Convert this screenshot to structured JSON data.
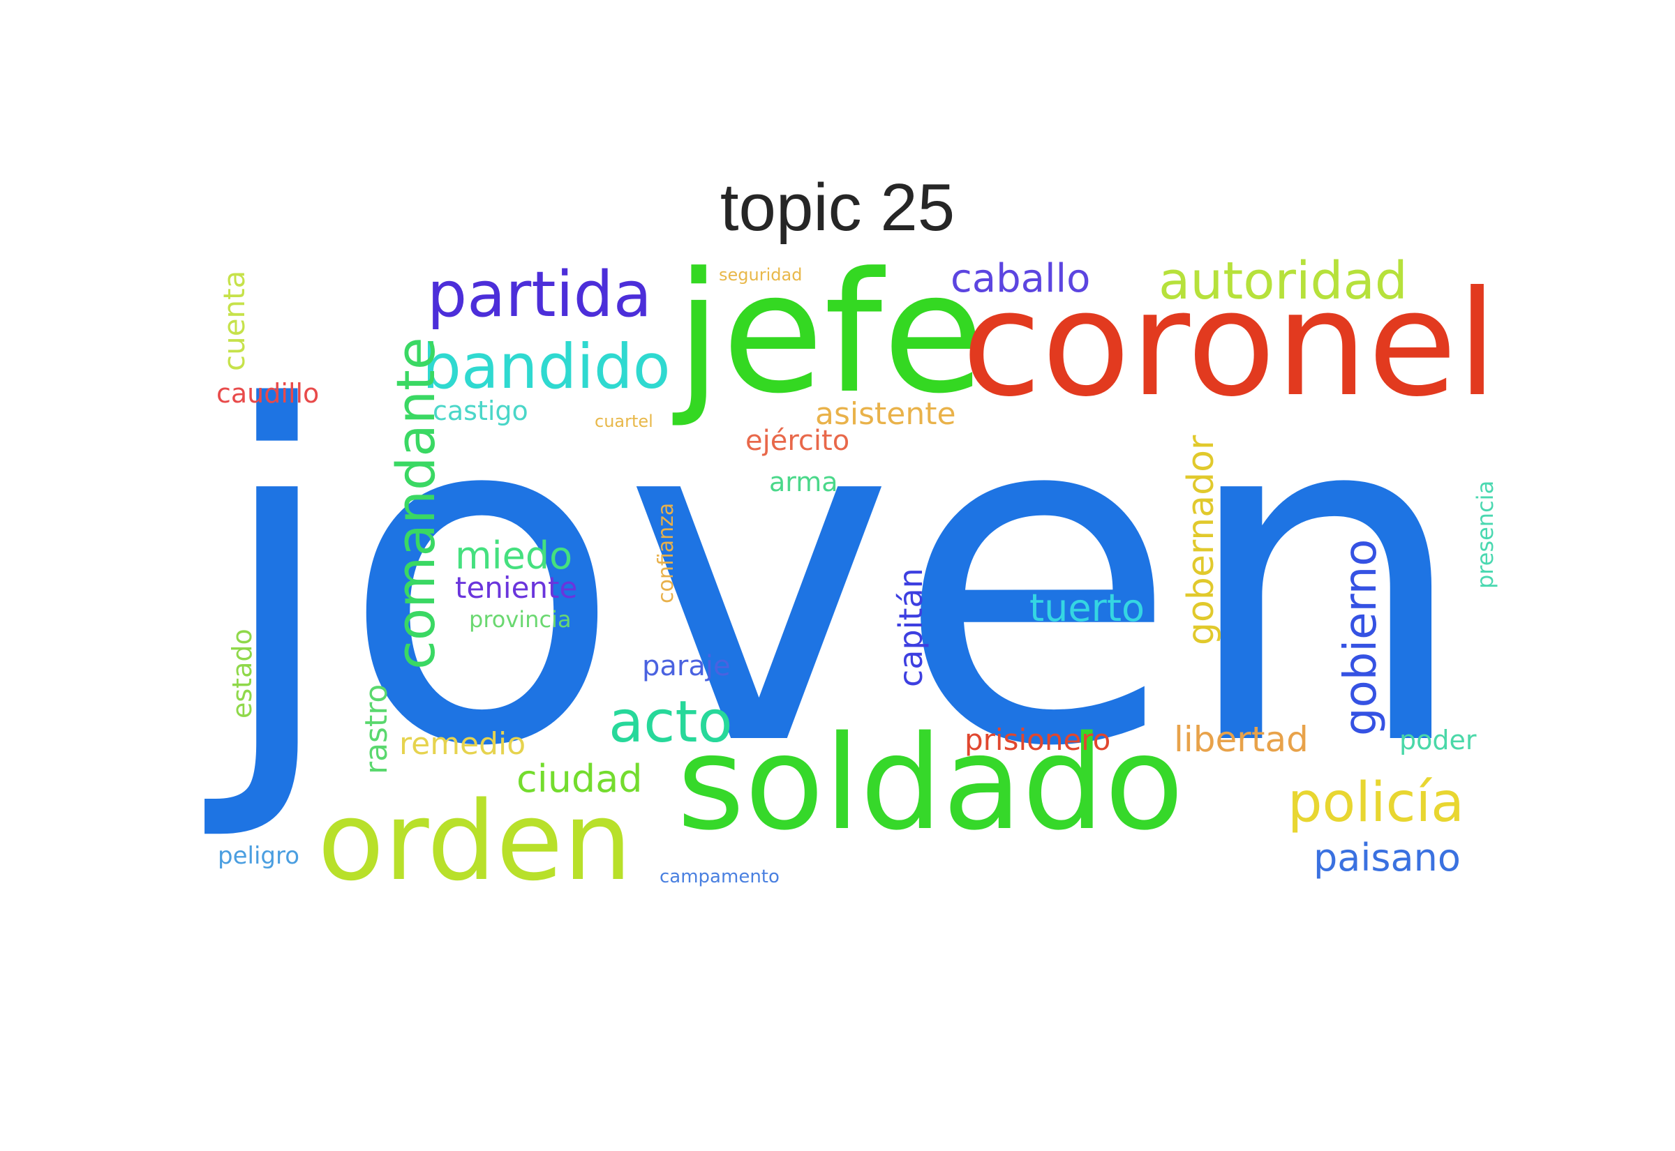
{
  "title": "topic 25",
  "words": [
    {
      "text": "joven",
      "color": "#1e74e3"
    },
    {
      "text": "jefe",
      "color": "#34d822"
    },
    {
      "text": "coronel",
      "color": "#e23a1f"
    },
    {
      "text": "soldado",
      "color": "#36d82a"
    },
    {
      "text": "orden",
      "color": "#b8e02a"
    },
    {
      "text": "partida",
      "color": "#4c2ed9"
    },
    {
      "text": "bandido",
      "color": "#2fd9d0"
    },
    {
      "text": "comandante",
      "color": "#3ad863"
    },
    {
      "text": "autoridad",
      "color": "#b6e13b"
    },
    {
      "text": "policía",
      "color": "#e8d631"
    },
    {
      "text": "acto",
      "color": "#27d89a"
    },
    {
      "text": "gobierno",
      "color": "#3552e3"
    },
    {
      "text": "caballo",
      "color": "#5c45e0"
    },
    {
      "text": "gobernador",
      "color": "#e1c92c"
    },
    {
      "text": "paisano",
      "color": "#3a71e0"
    },
    {
      "text": "ciudad",
      "color": "#74dc2e"
    },
    {
      "text": "tuerto",
      "color": "#35d6e2"
    },
    {
      "text": "miedo",
      "color": "#45e07f"
    },
    {
      "text": "teniente",
      "color": "#6a35dc"
    },
    {
      "text": "libertad",
      "color": "#e8a24a"
    },
    {
      "text": "prisionero",
      "color": "#e0472f"
    },
    {
      "text": "capitán",
      "color": "#3d3fe0"
    },
    {
      "text": "asistente",
      "color": "#e9b24a"
    },
    {
      "text": "rastro",
      "color": "#5ad86e"
    },
    {
      "text": "remedio",
      "color": "#e6d34e"
    },
    {
      "text": "cuenta",
      "color": "#c6e24a"
    },
    {
      "text": "caudillo",
      "color": "#e84a4a"
    },
    {
      "text": "ejército",
      "color": "#e8684a"
    },
    {
      "text": "estado",
      "color": "#8fd84a"
    },
    {
      "text": "paraje",
      "color": "#4a62e0"
    },
    {
      "text": "arma",
      "color": "#4ad88a"
    },
    {
      "text": "castigo",
      "color": "#4ad6c8"
    },
    {
      "text": "poder",
      "color": "#4ad8a8"
    },
    {
      "text": "confianza",
      "color": "#e8b04a"
    },
    {
      "text": "provincia",
      "color": "#6ad870"
    },
    {
      "text": "presencia",
      "color": "#4ad8b0"
    },
    {
      "text": "peligro",
      "color": "#4a9ee0"
    },
    {
      "text": "seguridad",
      "color": "#e8b84a"
    },
    {
      "text": "cuartel",
      "color": "#e8b84a"
    },
    {
      "text": "campamento",
      "color": "#4a80e0"
    }
  ]
}
